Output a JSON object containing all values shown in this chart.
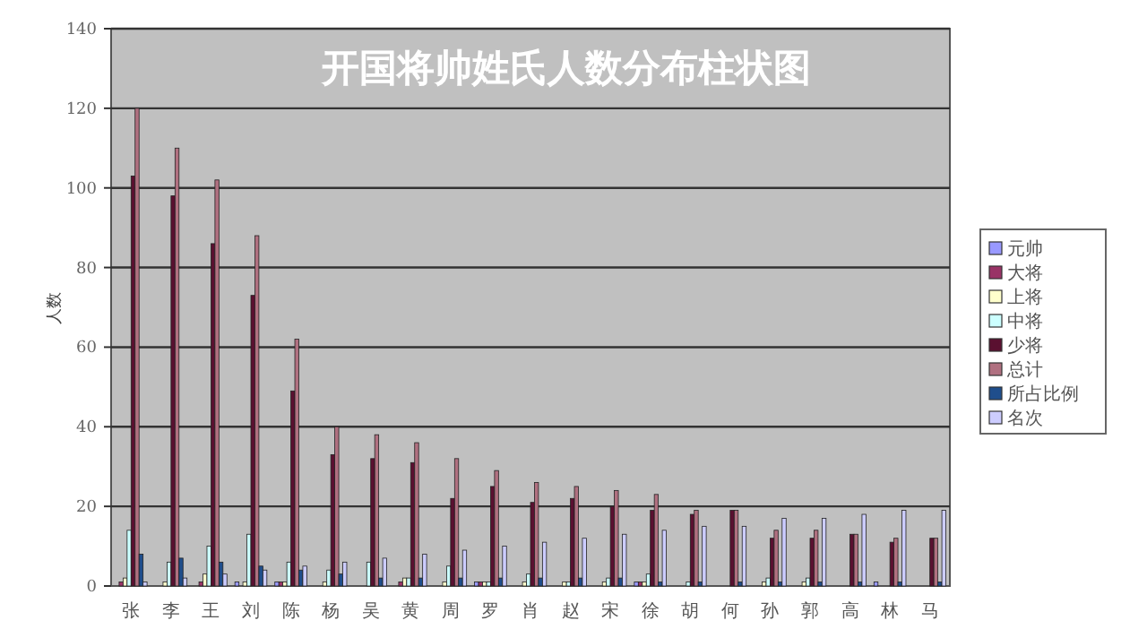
{
  "chart_data": {
    "type": "bar",
    "title": "开国将帅姓氏人数分布柱状图",
    "ylabel": "人数",
    "categories": [
      "张",
      "李",
      "王",
      "刘",
      "陈",
      "杨",
      "吴",
      "黄",
      "周",
      "罗",
      "肖",
      "赵",
      "宋",
      "徐",
      "胡",
      "何",
      "孙",
      "郭",
      "高",
      "林",
      "马"
    ],
    "series": [
      {
        "name": "元帅",
        "color": "#9999ff",
        "values": [
          0,
          0,
          0,
          1,
          1,
          0,
          0,
          0,
          0,
          1,
          0,
          0,
          0,
          1,
          0,
          0,
          0,
          0,
          0,
          1,
          0
        ]
      },
      {
        "name": "大将",
        "color": "#993366",
        "values": [
          1,
          0,
          1,
          0,
          1,
          0,
          0,
          1,
          0,
          1,
          0,
          0,
          0,
          1,
          0,
          0,
          0,
          0,
          0,
          0,
          0
        ]
      },
      {
        "name": "上将",
        "color": "#ffffcc",
        "values": [
          2,
          1,
          3,
          1,
          1,
          1,
          0,
          2,
          1,
          1,
          1,
          1,
          1,
          1,
          0,
          0,
          1,
          1,
          0,
          0,
          0
        ]
      },
      {
        "name": "中将",
        "color": "#ccffff",
        "values": [
          14,
          6,
          10,
          13,
          6,
          4,
          6,
          2,
          5,
          1,
          3,
          1,
          2,
          3,
          1,
          0,
          2,
          2,
          0,
          0,
          0
        ]
      },
      {
        "name": "少将",
        "color": "#5a1030",
        "values": [
          103,
          98,
          86,
          73,
          49,
          33,
          32,
          31,
          22,
          25,
          21,
          22,
          20,
          19,
          18,
          19,
          12,
          12,
          13,
          11,
          12
        ]
      },
      {
        "name": "总计",
        "color": "#b07080",
        "values": [
          120,
          110,
          102,
          88,
          62,
          40,
          38,
          36,
          32,
          29,
          26,
          25,
          24,
          23,
          19,
          19,
          14,
          14,
          13,
          12,
          12
        ]
      },
      {
        "name": "所占比例",
        "color": "#1f4e8c",
        "values": [
          8,
          7,
          6,
          5,
          4,
          3,
          2,
          2,
          2,
          2,
          2,
          2,
          2,
          1,
          1,
          1,
          1,
          1,
          1,
          1,
          1
        ]
      },
      {
        "name": "名次",
        "color": "#ccccff",
        "values": [
          1,
          2,
          3,
          4,
          5,
          6,
          7,
          8,
          9,
          10,
          11,
          12,
          13,
          14,
          15,
          15,
          17,
          17,
          18,
          19,
          19
        ]
      }
    ],
    "ylim": [
      0,
      140
    ],
    "yticks": [
      0,
      20,
      40,
      60,
      80,
      100,
      120,
      140
    ],
    "grid": "y",
    "legend": "right"
  }
}
